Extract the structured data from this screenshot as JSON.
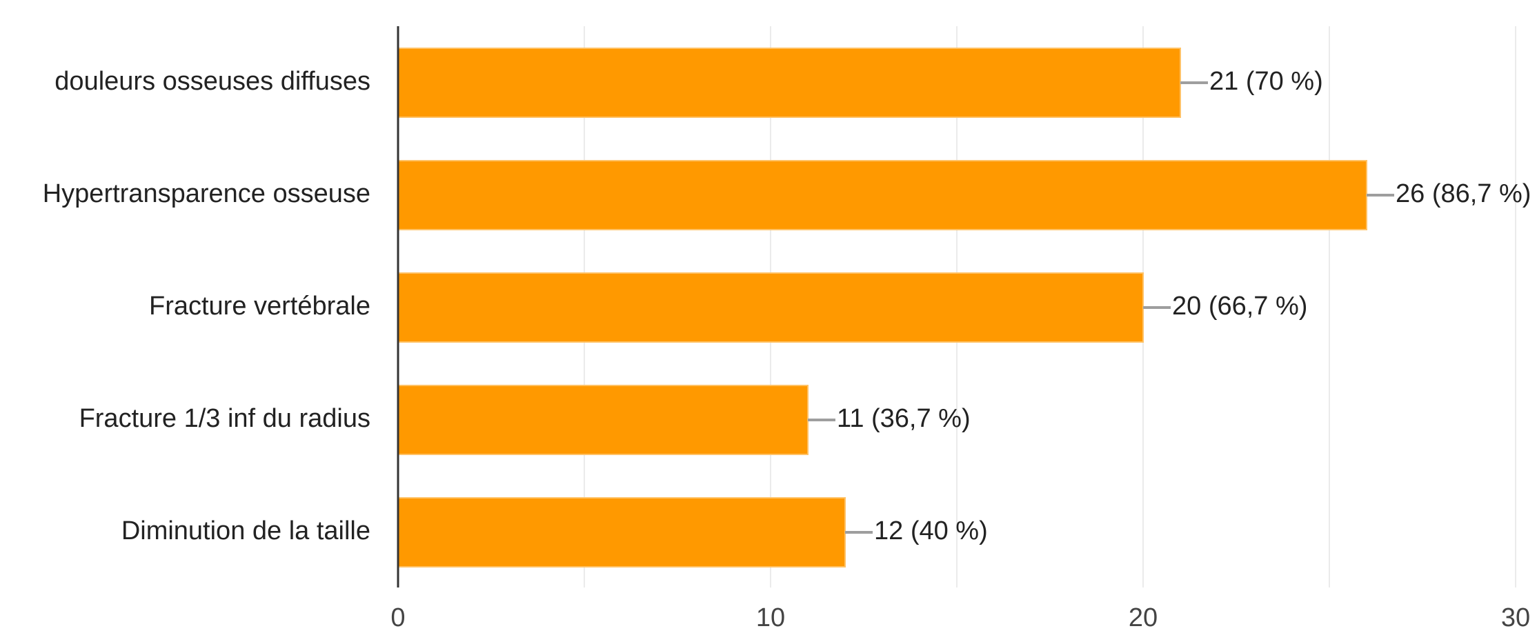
{
  "chart_data": {
    "type": "bar",
    "orientation": "horizontal",
    "categories": [
      "douleurs osseuses diffuses",
      "Hypertransparence osseuse",
      "Fracture vertébrale",
      "Fracture 1/3 inf du radius",
      "Diminution de la taille"
    ],
    "values": [
      21,
      26,
      20,
      11,
      12
    ],
    "value_labels": [
      "21 (70 %)",
      "26 (86,7 %)",
      "20 (66,7 %)",
      "11 (36,7 %)",
      "12 (40 %)"
    ],
    "xlim": [
      0,
      30
    ],
    "x_ticks": [
      0,
      10,
      20,
      30
    ],
    "x_tick_labels": [
      "0",
      "10",
      "20",
      "30"
    ],
    "grid": true,
    "title": "",
    "xlabel": "",
    "ylabel": ""
  },
  "colors": {
    "bar": "#ff9900",
    "bar_edge": "#ffc266",
    "grid": "#ebebeb",
    "axis": "#333333",
    "leader": "#9e9e9e"
  }
}
